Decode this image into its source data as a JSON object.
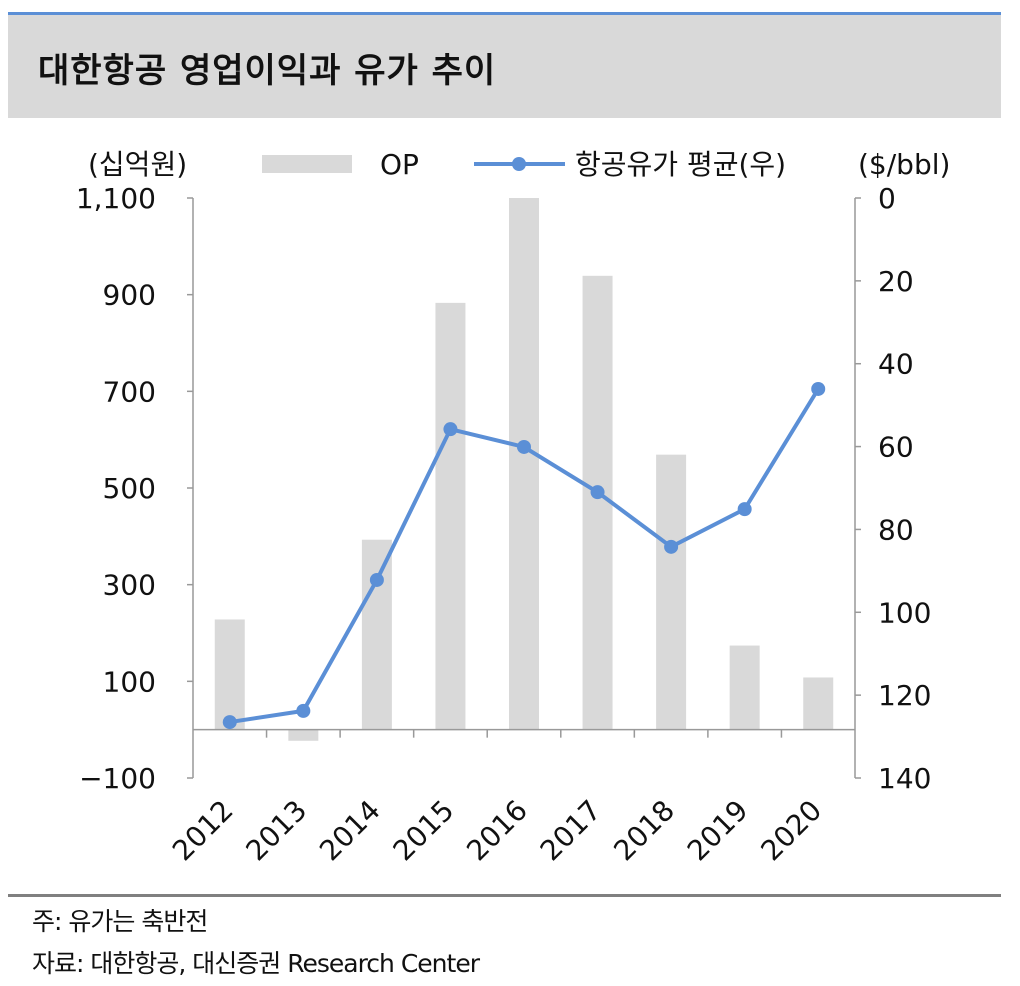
{
  "title": "대한항공 영업이익과 유가 추이",
  "chart_data": {
    "type": "bar+line",
    "title": "대한항공 영업이익과 유가 추이",
    "categories": [
      "2012",
      "2013",
      "2014",
      "2015",
      "2016",
      "2017",
      "2018",
      "2019",
      "2020"
    ],
    "series": [
      {
        "name": "OP",
        "type": "bar",
        "axis": "left",
        "color": "#d9d9d9",
        "values": [
          228,
          -23,
          393,
          883,
          1100,
          939,
          569,
          174,
          108
        ]
      },
      {
        "name": "항공유가 평균(우)",
        "type": "line",
        "axis": "right",
        "color": "#5b8fd6",
        "values": [
          126.5,
          123.8,
          92.2,
          55.8,
          60.1,
          71.0,
          84.2,
          75.1,
          46.1
        ]
      }
    ],
    "left_axis": {
      "label": "(십억원)",
      "range": [
        -100,
        1100
      ],
      "ticks": [
        1100,
        900,
        700,
        500,
        300,
        100,
        -100
      ],
      "tick_labels": [
        "1,100",
        "900",
        "700",
        "500",
        "300",
        "100",
        "−100"
      ]
    },
    "right_axis": {
      "label": "($/bbl)",
      "range": [
        0,
        140
      ],
      "inverted": true,
      "ticks": [
        0,
        20,
        40,
        60,
        80,
        100,
        120,
        140
      ],
      "tick_labels": [
        "0",
        "20",
        "40",
        "60",
        "80",
        "100",
        "120",
        "140"
      ]
    },
    "legend": {
      "placement": "top",
      "entries": [
        "OP",
        "항공유가 평균(우)"
      ]
    },
    "grid": false
  },
  "notes": {
    "note": "주: 유가는 축반전",
    "source": "자료: 대한항공, 대신증권 Research Center"
  }
}
